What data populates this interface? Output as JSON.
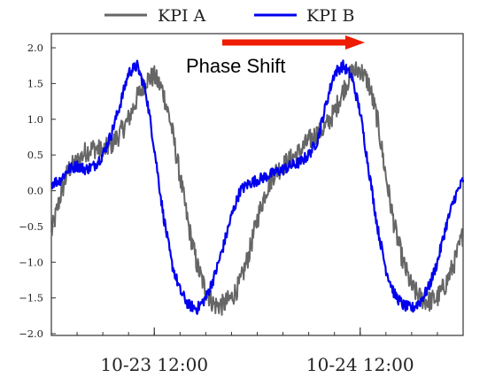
{
  "chart_data": {
    "type": "line",
    "title": "",
    "xlabel": "",
    "ylabel": "",
    "ylim": [
      -2.0,
      2.0
    ],
    "yticks": [
      2.0,
      1.5,
      1.0,
      0.5,
      0.0,
      -0.5,
      -1.0,
      -1.5,
      -2.0
    ],
    "ytick_labels": [
      "2.0",
      "1.5",
      "1.0",
      "0.5",
      "0.0",
      "−0.5",
      "−1.0",
      "−1.5",
      "−2.0"
    ],
    "xlim_hours": [
      0,
      48
    ],
    "xtick_labels": [
      "10-23 12:00",
      "10-24 12:00"
    ],
    "xtick_hours": [
      12,
      36
    ],
    "grid": false,
    "legend": {
      "placement": "top-center",
      "entries": [
        "KPI A",
        "KPI B"
      ]
    },
    "annotation": {
      "text": "Phase Shift",
      "arrow": "pointing right, from about hour 20 to hour 36"
    },
    "series": [
      {
        "name": "KPI A",
        "color": "#666666",
        "x": [
          0,
          1,
          2,
          3,
          4,
          5,
          6,
          7,
          8,
          9,
          10,
          11,
          12,
          13,
          14,
          15,
          16,
          17,
          18,
          19,
          20,
          21,
          22,
          23,
          24,
          25,
          26,
          27,
          28,
          29,
          30,
          31,
          32,
          33,
          34,
          35,
          36,
          37,
          38,
          39,
          40,
          41,
          42,
          43,
          44,
          45,
          46,
          47,
          48
        ],
        "y": [
          -0.6,
          -0.1,
          0.3,
          0.4,
          0.55,
          0.6,
          0.55,
          0.65,
          0.8,
          1.0,
          1.3,
          1.55,
          1.6,
          1.4,
          0.9,
          0.2,
          -0.5,
          -1.05,
          -1.4,
          -1.6,
          -1.6,
          -1.5,
          -1.3,
          -0.9,
          -0.4,
          0.0,
          0.25,
          0.35,
          0.45,
          0.55,
          0.7,
          0.8,
          0.9,
          1.1,
          1.4,
          1.65,
          1.7,
          1.5,
          1.0,
          0.2,
          -0.5,
          -1.0,
          -1.35,
          -1.5,
          -1.55,
          -1.5,
          -1.3,
          -1.0,
          -0.6
        ],
        "noise": 0.15
      },
      {
        "name": "KPI B",
        "color": "#0000ee",
        "x": [
          0,
          1,
          2,
          3,
          4,
          5,
          6,
          7,
          8,
          9,
          10,
          11,
          12,
          13,
          14,
          15,
          16,
          17,
          18,
          19,
          20,
          21,
          22,
          23,
          24,
          25,
          26,
          27,
          28,
          29,
          30,
          31,
          32,
          33,
          34,
          35,
          36,
          37,
          38,
          39,
          40,
          41,
          42,
          43,
          44,
          45,
          46,
          47,
          48
        ],
        "y": [
          0.1,
          0.15,
          0.3,
          0.35,
          0.3,
          0.35,
          0.5,
          0.8,
          1.2,
          1.65,
          1.75,
          1.4,
          0.6,
          -0.3,
          -1.0,
          -1.4,
          -1.6,
          -1.65,
          -1.5,
          -1.2,
          -0.8,
          -0.35,
          0.0,
          0.1,
          0.15,
          0.2,
          0.25,
          0.3,
          0.35,
          0.4,
          0.5,
          0.7,
          1.2,
          1.65,
          1.75,
          1.6,
          1.1,
          0.3,
          -0.5,
          -1.1,
          -1.45,
          -1.6,
          -1.65,
          -1.55,
          -1.35,
          -1.0,
          -0.5,
          -0.1,
          0.15
        ],
        "noise": 0.08
      }
    ]
  }
}
